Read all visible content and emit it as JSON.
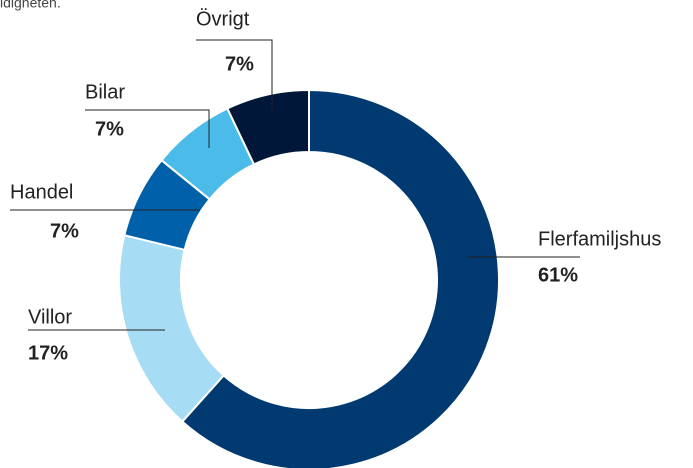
{
  "top_text": "idigheten.",
  "chart_data": {
    "type": "donut",
    "categories": [
      "Flerfamiljshus",
      "Villor",
      "Handel",
      "Bilar",
      "Övrigt"
    ],
    "values": [
      61,
      17,
      7,
      7,
      7
    ],
    "value_labels": [
      "61%",
      "17%",
      "7%",
      "7%",
      "7%"
    ],
    "colors": [
      "#003a70",
      "#a6ddf5",
      "#0060a9",
      "#4bbbe9",
      "#00173a"
    ]
  }
}
